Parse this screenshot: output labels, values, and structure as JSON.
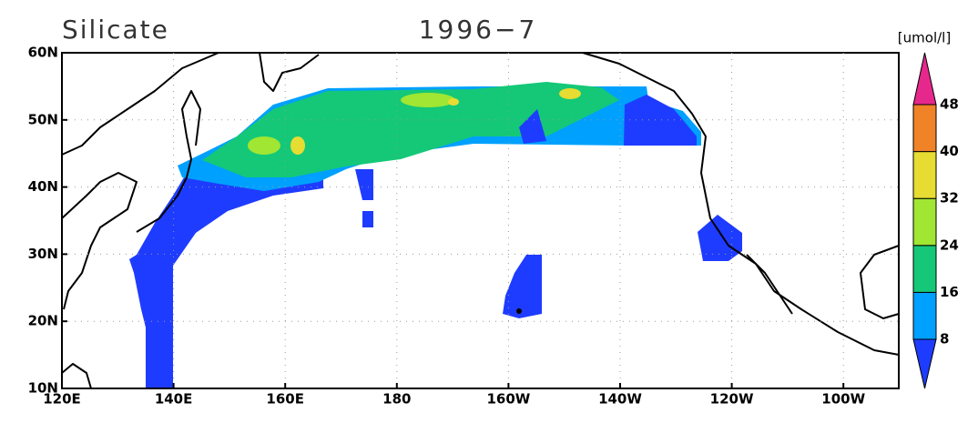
{
  "title": "Silicate",
  "period": "1996−7",
  "unit": "[umol/l]",
  "lon_labels": [
    "120E",
    "140E",
    "160E",
    "180",
    "160W",
    "140W",
    "120W",
    "100W"
  ],
  "lat_labels": [
    "10N",
    "20N",
    "30N",
    "40N",
    "50N",
    "60N"
  ],
  "colorbar": {
    "levels": [
      8,
      16,
      24,
      32,
      40,
      48
    ],
    "colors": [
      "#1e3cff",
      "#00a0ff",
      "#14c878",
      "#a0e632",
      "#e6dc32",
      "#f08228",
      "#e6288c"
    ]
  }
}
